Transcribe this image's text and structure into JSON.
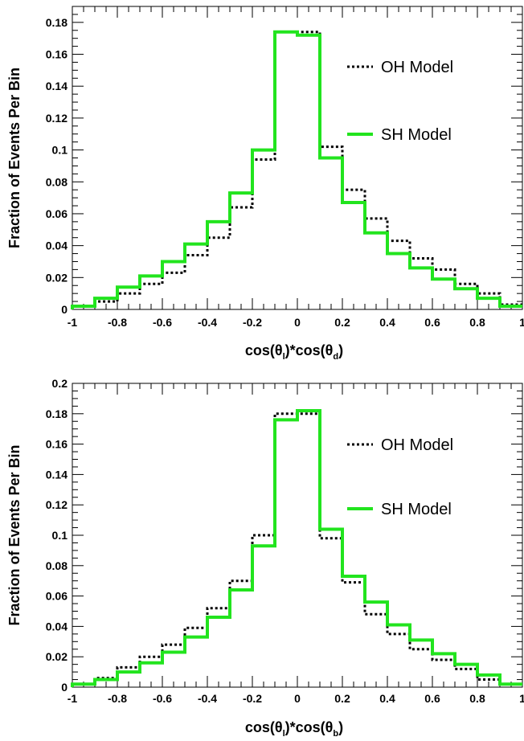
{
  "chart_data": [
    {
      "type": "line",
      "step": true,
      "xlabel": {
        "main": "cos(θ",
        "sub1": "l",
        "mid": ")*cos(θ",
        "sub2": "d",
        "end": ")"
      },
      "ylabel": "Fraction of Events Per Bin",
      "xlim": [
        -1,
        1
      ],
      "ylim": [
        0,
        0.19
      ],
      "x_ticks": [
        -1,
        -0.8,
        -0.6,
        -0.4,
        -0.2,
        0,
        0.2,
        0.4,
        0.6,
        0.8,
        1
      ],
      "x_tick_labels": [
        "-1",
        "-0.8",
        "-0.6",
        "-0.4",
        "-0.2",
        "0",
        "0.2",
        "0.4",
        "0.6",
        "0.8",
        "1"
      ],
      "y_ticks": [
        0,
        0.02,
        0.04,
        0.06,
        0.08,
        0.1,
        0.12,
        0.14,
        0.16,
        0.18
      ],
      "y_tick_labels": [
        "0",
        "0.02",
        "0.04",
        "0.06",
        "0.08",
        "0.1",
        "0.12",
        "0.14",
        "0.16",
        "0.18"
      ],
      "bin_edges": [
        -1,
        -0.9,
        -0.8,
        -0.7,
        -0.6,
        -0.5,
        -0.4,
        -0.3,
        -0.2,
        -0.1,
        0,
        0.1,
        0.2,
        0.3,
        0.4,
        0.5,
        0.6,
        0.7,
        0.8,
        0.9,
        1
      ],
      "series": [
        {
          "name": "OH Model",
          "color": "#000000",
          "style": "dotted",
          "values": [
            0.002,
            0.005,
            0.01,
            0.016,
            0.023,
            0.034,
            0.045,
            0.064,
            0.094,
            0.174,
            0.174,
            0.102,
            0.075,
            0.057,
            0.043,
            0.032,
            0.025,
            0.016,
            0.01,
            0.003
          ]
        },
        {
          "name": "SH Model",
          "color": "#22e41e",
          "style": "solid",
          "values": [
            0.002,
            0.007,
            0.014,
            0.021,
            0.03,
            0.041,
            0.055,
            0.073,
            0.1,
            0.174,
            0.172,
            0.095,
            0.067,
            0.048,
            0.035,
            0.026,
            0.019,
            0.013,
            0.007,
            0.002
          ]
        }
      ],
      "legend": "right"
    },
    {
      "type": "line",
      "step": true,
      "xlabel": {
        "main": "cos(θ",
        "sub1": "l",
        "mid": ")*cos(θ",
        "sub2": "b",
        "end": ")"
      },
      "ylabel": "Fraction of Events Per Bin",
      "xlim": [
        -1,
        1
      ],
      "ylim": [
        0,
        0.2
      ],
      "x_ticks": [
        -1,
        -0.8,
        -0.6,
        -0.4,
        -0.2,
        0,
        0.2,
        0.4,
        0.6,
        0.8,
        1
      ],
      "x_tick_labels": [
        "-1",
        "-0.8",
        "-0.6",
        "-0.4",
        "-0.2",
        "0",
        "0.2",
        "0.4",
        "0.6",
        "0.8",
        "1"
      ],
      "y_ticks": [
        0,
        0.02,
        0.04,
        0.06,
        0.08,
        0.1,
        0.12,
        0.14,
        0.16,
        0.18,
        0.2
      ],
      "y_tick_labels": [
        "0",
        "0.02",
        "0.04",
        "0.06",
        "0.08",
        "0.1",
        "0.12",
        "0.14",
        "0.16",
        "0.18",
        "0.2"
      ],
      "bin_edges": [
        -1,
        -0.9,
        -0.8,
        -0.7,
        -0.6,
        -0.5,
        -0.4,
        -0.3,
        -0.2,
        -0.1,
        0,
        0.1,
        0.2,
        0.3,
        0.4,
        0.5,
        0.6,
        0.7,
        0.8,
        0.9,
        1
      ],
      "series": [
        {
          "name": "OH Model",
          "color": "#000000",
          "style": "dotted",
          "values": [
            0.002,
            0.006,
            0.013,
            0.02,
            0.028,
            0.039,
            0.052,
            0.07,
            0.1,
            0.18,
            0.18,
            0.098,
            0.069,
            0.048,
            0.035,
            0.025,
            0.018,
            0.012,
            0.005,
            0.002
          ]
        },
        {
          "name": "SH Model",
          "color": "#22e41e",
          "style": "solid",
          "values": [
            0.002,
            0.005,
            0.01,
            0.016,
            0.023,
            0.033,
            0.046,
            0.064,
            0.093,
            0.176,
            0.182,
            0.104,
            0.073,
            0.056,
            0.041,
            0.031,
            0.022,
            0.015,
            0.008,
            0.002
          ]
        }
      ],
      "legend": "right"
    }
  ]
}
